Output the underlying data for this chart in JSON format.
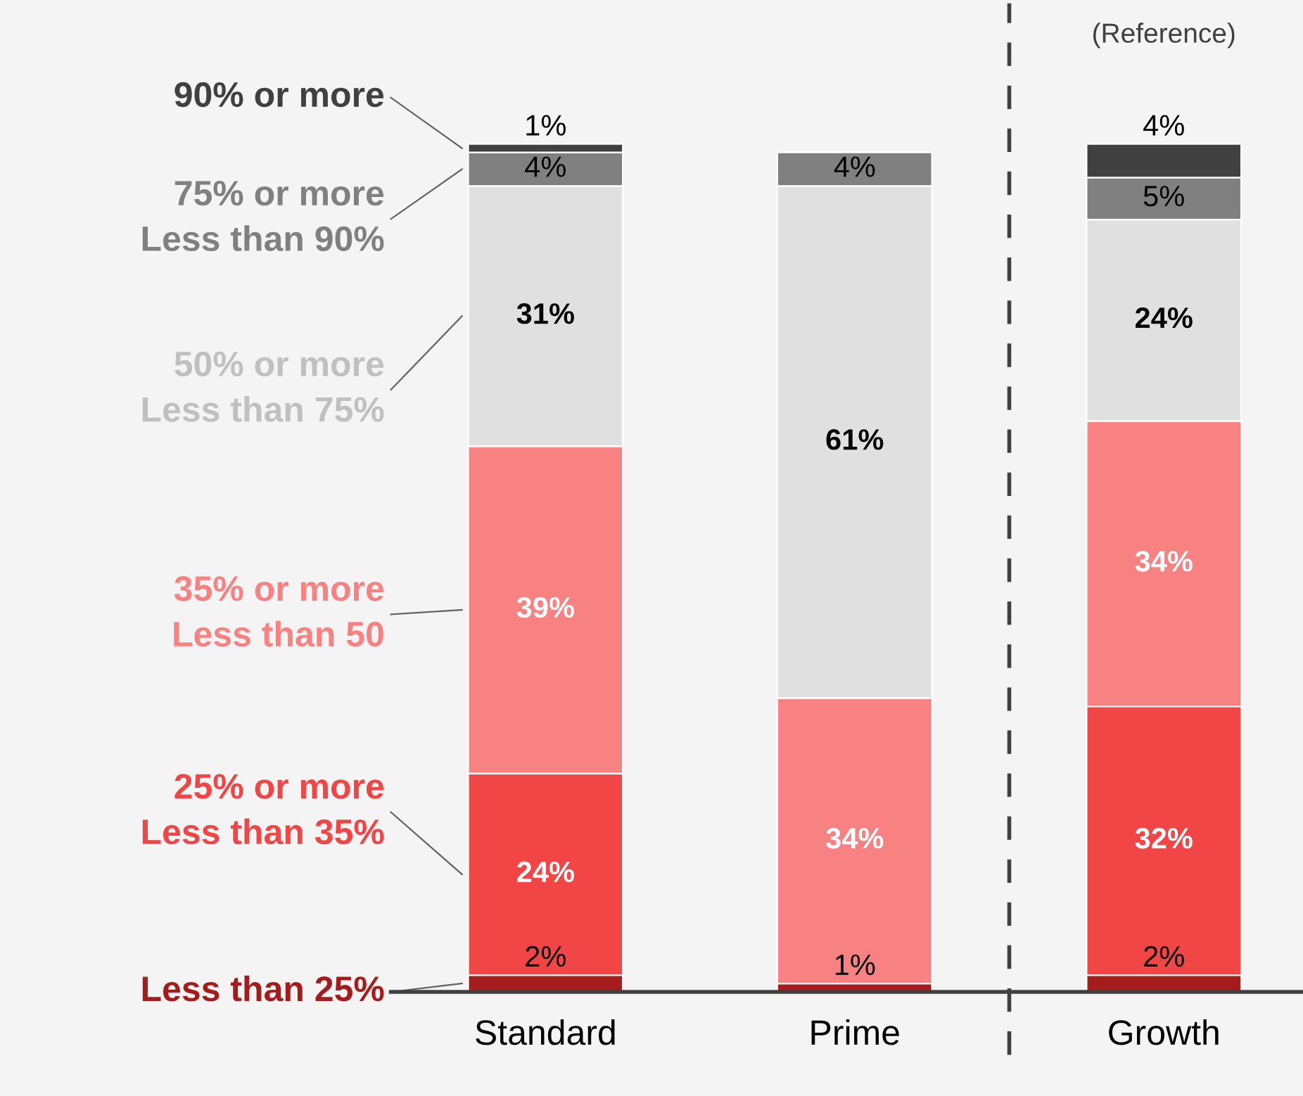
{
  "chart_data": {
    "type": "bar",
    "stacked": true,
    "categories": [
      "Standard",
      "Prime",
      "Growth"
    ],
    "legend": "left",
    "grid": false,
    "series": [
      {
        "name": "Less than 25%",
        "color": "#a51c1c",
        "values": [
          2,
          1,
          2
        ],
        "value_labels": [
          "2%",
          "1%",
          "2%"
        ]
      },
      {
        "name": "25% or more\nLess than 35%",
        "color": "#f24545",
        "values": [
          24,
          null,
          32
        ],
        "value_labels": [
          "24%",
          null,
          "32%"
        ]
      },
      {
        "name": "35% or more\nLess than 50",
        "color": "#f88282",
        "values": [
          39,
          34,
          34
        ],
        "value_labels": [
          "39%",
          "34%",
          "34%"
        ]
      },
      {
        "name": "50% or more\nLess than 75%",
        "color": "#e0e0e0",
        "values": [
          31,
          61,
          24
        ],
        "value_labels": [
          "31%",
          "61%",
          "24%"
        ]
      },
      {
        "name": "75% or more\nLess than 90%",
        "color": "#808080",
        "values": [
          4,
          4,
          5
        ],
        "value_labels": [
          "4%",
          "4%",
          "5%"
        ]
      },
      {
        "name": "90% or more",
        "color": "#404040",
        "values": [
          1,
          null,
          4
        ],
        "value_labels": [
          "1%",
          null,
          "4%"
        ]
      }
    ],
    "annotations": [
      "(Reference)"
    ]
  }
}
